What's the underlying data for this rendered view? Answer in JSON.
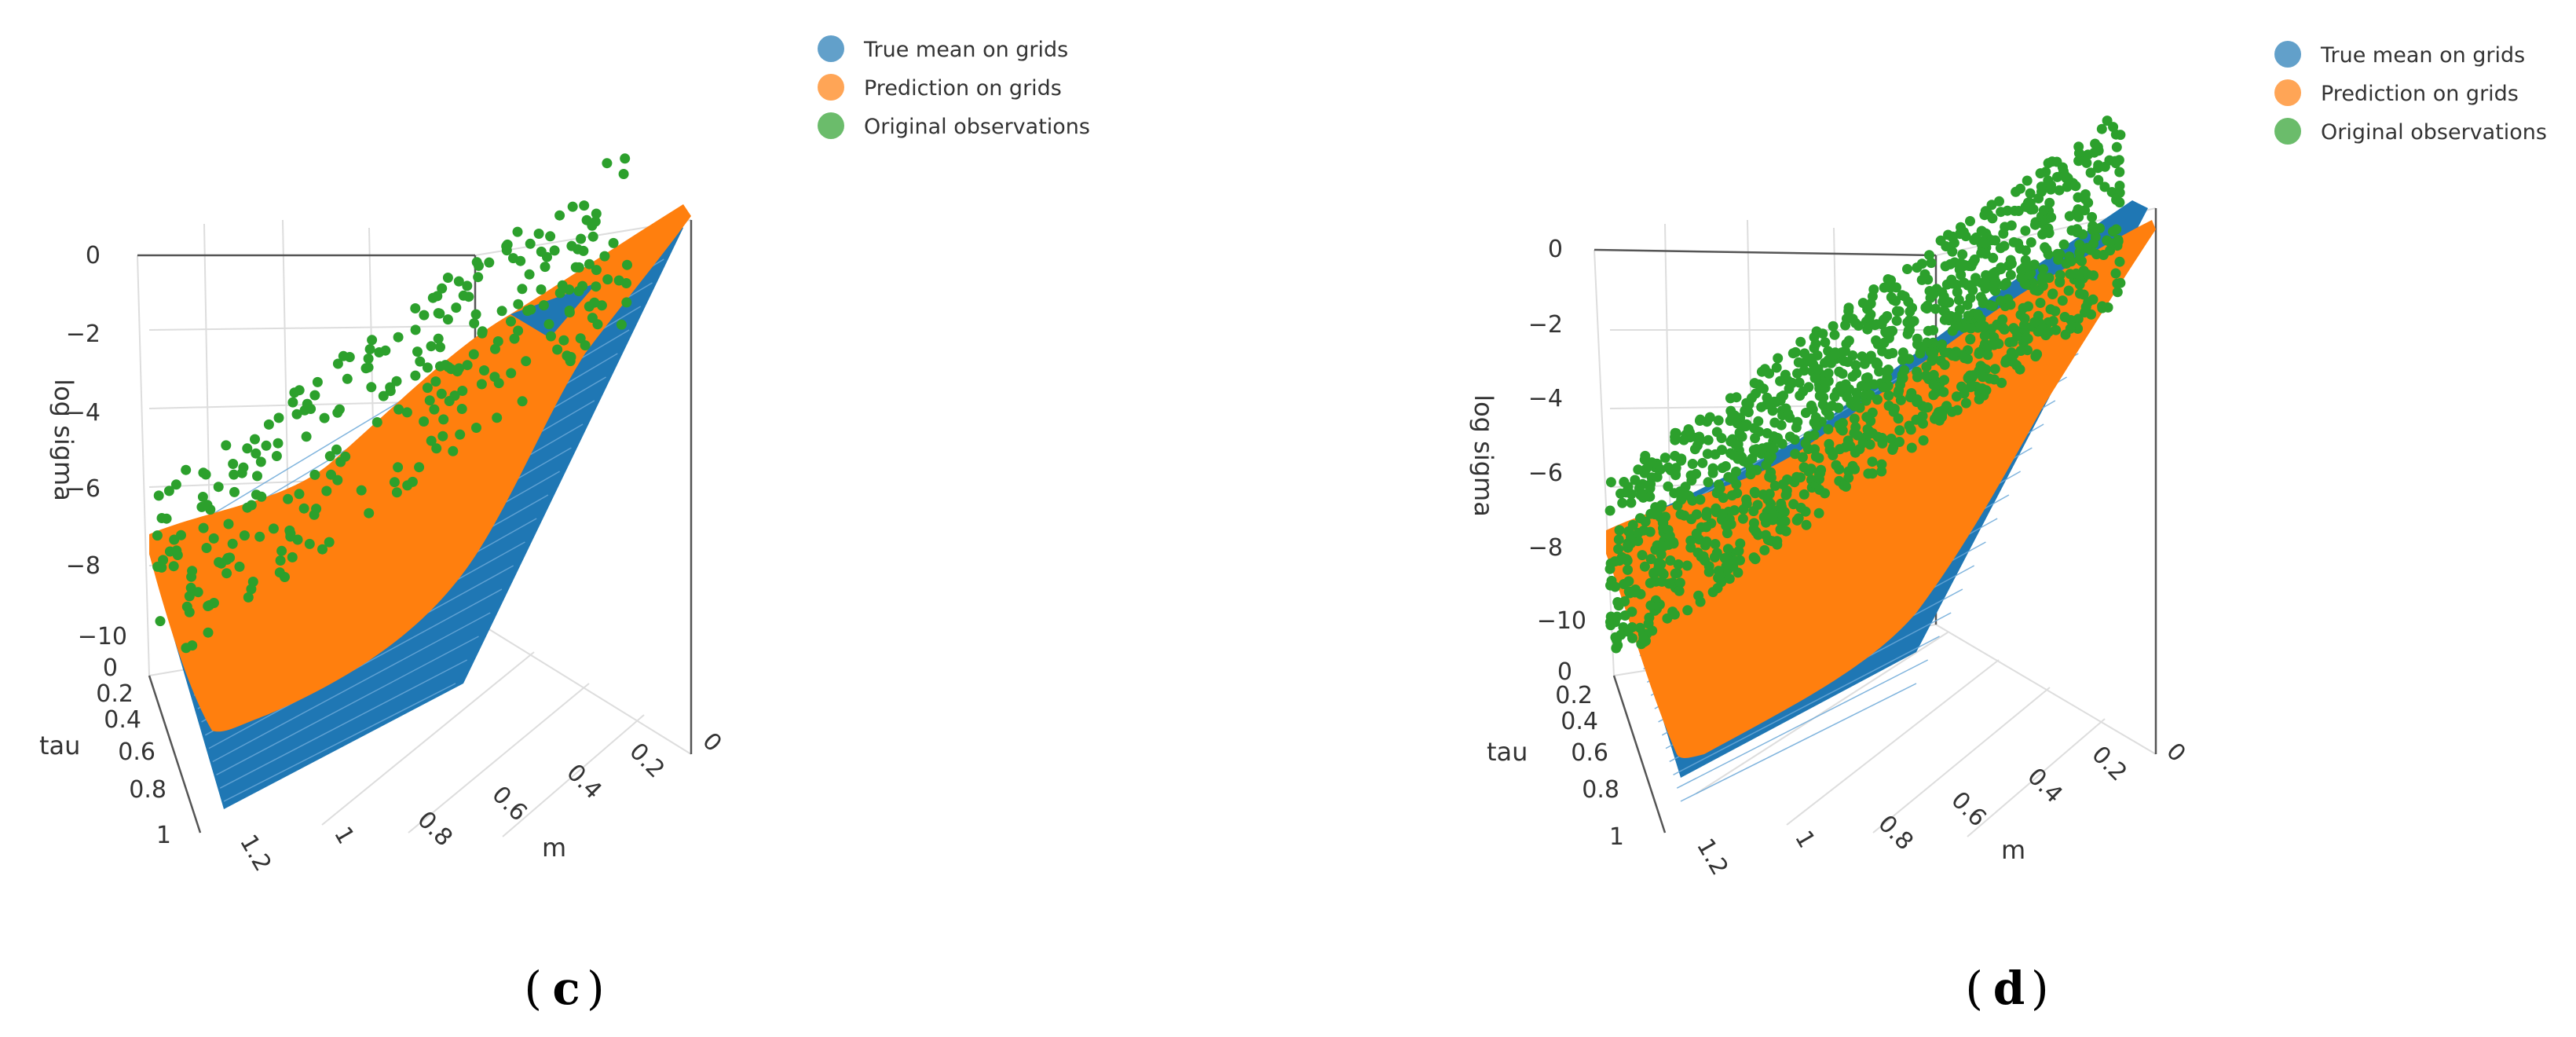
{
  "figure": {
    "captions": [
      "c",
      "d"
    ]
  },
  "colors": {
    "true_mean": "#1f77b4",
    "prediction": "#ff7f0e",
    "observations": "#2ca02c"
  },
  "chart_data": [
    {
      "type": "scatter",
      "subtype": "3d-surface-scatter",
      "panel": "c",
      "legend": [
        "True mean on grids",
        "Prediction on grids",
        "Original observations"
      ],
      "legend_position": "top-right",
      "axes": {
        "z": {
          "title": "log sigma",
          "ticks": [
            "0",
            "−2",
            "−4",
            "−6",
            "−8",
            "−10"
          ],
          "range": [
            -11,
            1
          ]
        },
        "tau": {
          "title": "tau",
          "ticks": [
            "0",
            "0.2",
            "0.4",
            "0.6",
            "0.8",
            "1"
          ],
          "range": [
            0,
            1
          ]
        },
        "m": {
          "title": "m",
          "ticks": [
            "1.2",
            "1",
            "0.8",
            "0.6",
            "0.4",
            "0.2",
            "0"
          ],
          "range": [
            0,
            1.2
          ]
        }
      },
      "series": [
        {
          "name": "True mean on grids",
          "kind": "surface-grid",
          "z_range": [
            -10.5,
            0.5
          ]
        },
        {
          "name": "Prediction on grids",
          "kind": "surface-grid",
          "z_range": [
            -8.5,
            0.5
          ]
        },
        {
          "name": "Original observations",
          "kind": "scatter",
          "count_approx": 280
        }
      ]
    },
    {
      "type": "scatter",
      "subtype": "3d-surface-scatter",
      "panel": "d",
      "legend": [
        "True mean on grids",
        "Prediction on grids",
        "Original observations"
      ],
      "legend_position": "top-right",
      "axes": {
        "z": {
          "title": "log sigma",
          "ticks": [
            "0",
            "−2",
            "−4",
            "−6",
            "−8",
            "−10"
          ],
          "range": [
            -11,
            1
          ]
        },
        "tau": {
          "title": "tau",
          "ticks": [
            "0",
            "0.2",
            "0.4",
            "0.6",
            "0.8",
            "1"
          ],
          "range": [
            0,
            1
          ]
        },
        "m": {
          "title": "m",
          "ticks": [
            "1.2",
            "1",
            "0.8",
            "0.6",
            "0.4",
            "0.2",
            "0"
          ],
          "range": [
            0,
            1.2
          ]
        }
      },
      "series": [
        {
          "name": "True mean on grids",
          "kind": "surface-grid",
          "z_range": [
            -10.5,
            0.5
          ]
        },
        {
          "name": "Prediction on grids",
          "kind": "surface-grid",
          "z_range": [
            -9,
            0.5
          ]
        },
        {
          "name": "Original observations",
          "kind": "scatter",
          "count_approx": 1200
        }
      ]
    }
  ]
}
